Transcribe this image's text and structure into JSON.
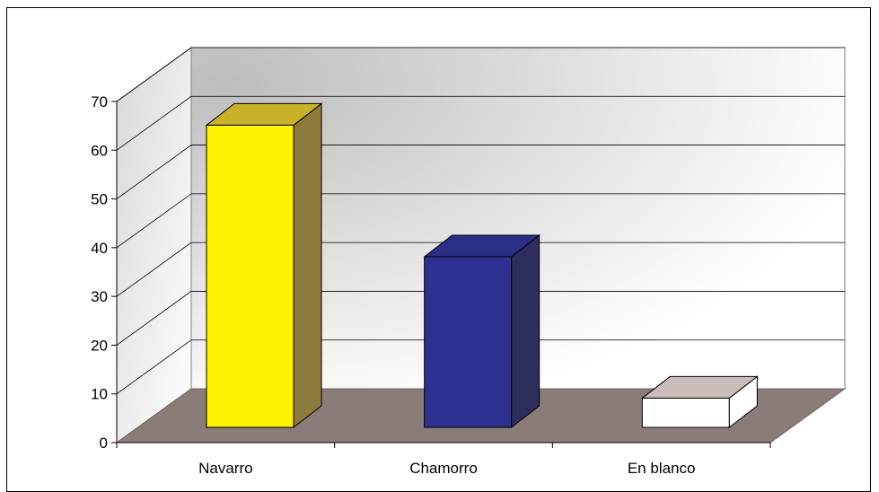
{
  "chart_data": {
    "type": "bar",
    "style": "3d-column",
    "categories": [
      "Navarro",
      "Chamorro",
      "En blanco"
    ],
    "values": [
      62,
      35,
      6
    ],
    "ylim": [
      0,
      70
    ],
    "yticks": [
      0,
      10,
      20,
      30,
      40,
      50,
      60,
      70
    ],
    "grid": true,
    "legend": "none",
    "colors": {
      "bars": [
        "#FFF200",
        "#2E3192",
        "#FFFFFF"
      ],
      "bar_sides": [
        "#8E7A3A",
        "#2D2D5E",
        "#FFFFFF"
      ],
      "bar_tops": [
        "#C9B22A",
        "#2B2F85",
        "#C9BDB9"
      ],
      "floor": "#8A7D79",
      "back_wall_dark": "#C4C4C4",
      "back_wall_light": "#FFFFFF"
    }
  }
}
